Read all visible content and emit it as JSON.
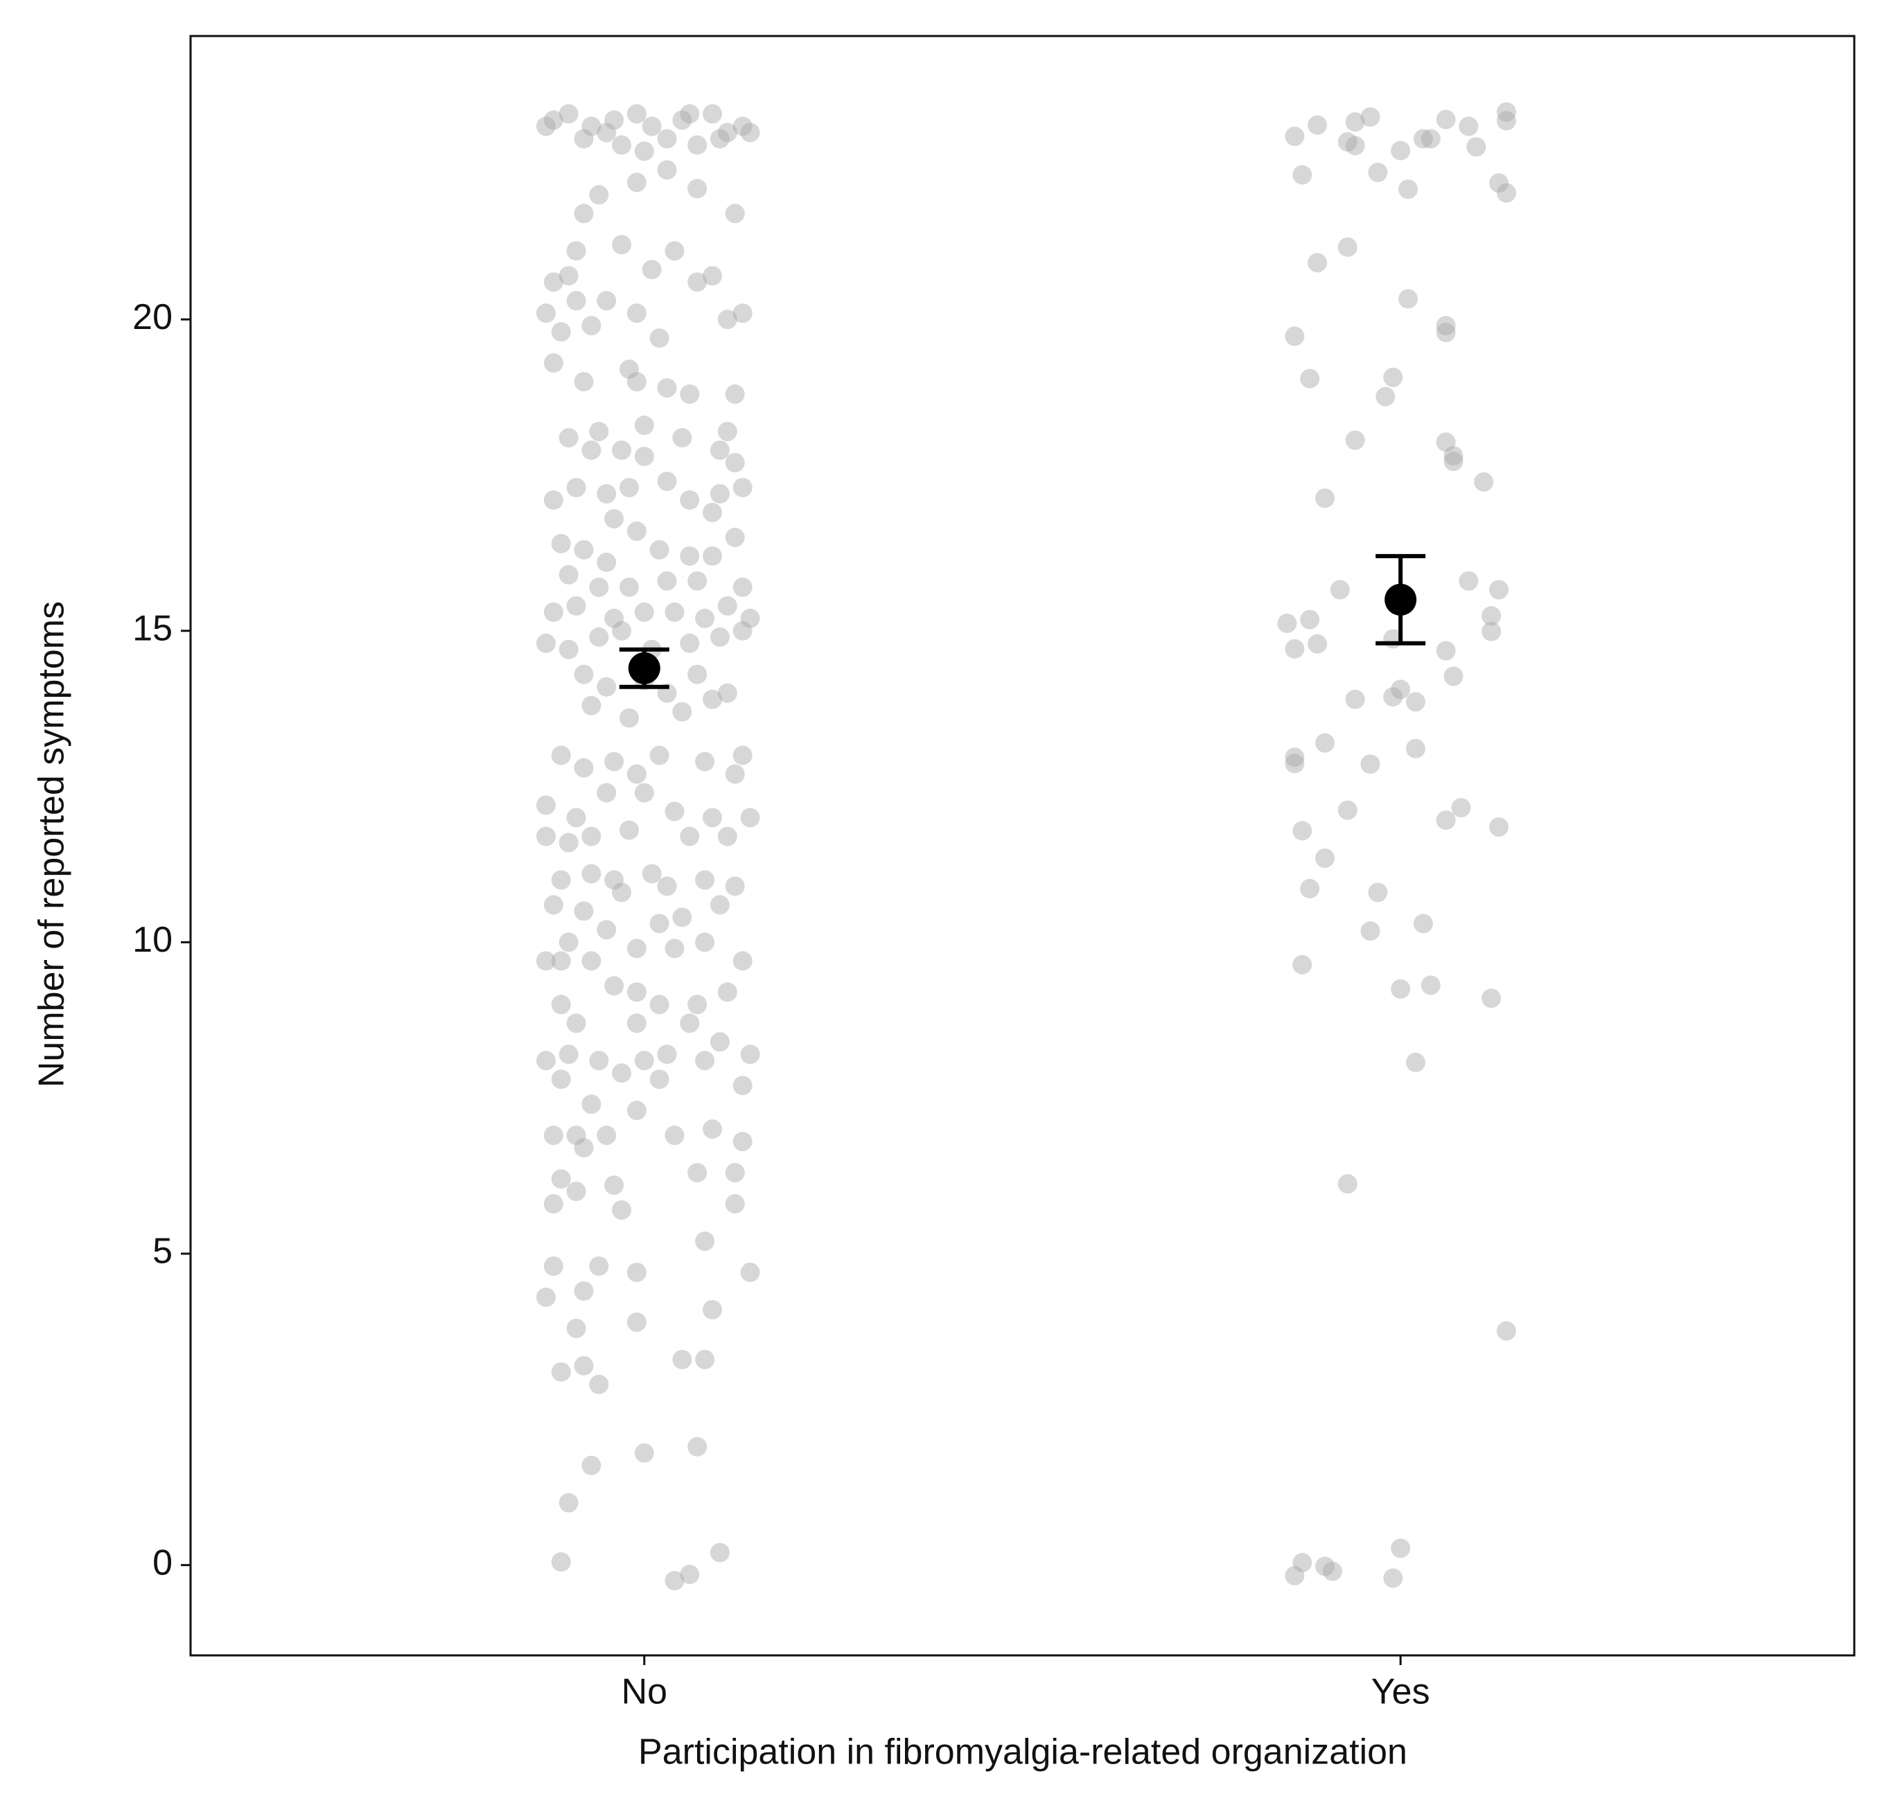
{
  "chart_data": {
    "type": "scatter",
    "x_label": "Participation in fibromyalgia-related organization",
    "y_label": "Number of reported symptoms",
    "xlim": [
      0.4,
      2.6
    ],
    "xticks": [
      {
        "value": 1,
        "label": "No"
      },
      {
        "value": 2,
        "label": "Yes"
      }
    ],
    "ylim": [
      -1.45,
      24.55
    ],
    "yticks": [
      0,
      5,
      10,
      15,
      20
    ],
    "series": [
      {
        "color": "#a6a6a6",
        "x": [
          0.88,
          0.9,
          0.93,
          0.95,
          0.97,
          0.99,
          1.01,
          1.03,
          1.05,
          1.07,
          1.09,
          1.11,
          1.13,
          0.92,
          1.0,
          1.06,
          0.96,
          1.1,
          0.87,
          1.14,
          0.99,
          0.94,
          1.07,
          0.92,
          1.12,
          1.03,
          0.97,
          1.04,
          0.91,
          0.88,
          0.9,
          0.87,
          0.91,
          0.95,
          0.99,
          1.07,
          1.09,
          1.11,
          1.13,
          1.01,
          0.89,
          0.93,
          1.02,
          0.88,
          0.92,
          0.98,
          1.03,
          1.06,
          1.12,
          0.99,
          0.9,
          0.94,
          0.93,
          0.97,
          1.0,
          1.05,
          1.11,
          1.1,
          1.12,
          1.0,
          0.88,
          0.91,
          0.95,
          0.98,
          1.03,
          1.06,
          1.1,
          1.13,
          0.96,
          1.09,
          0.89,
          0.92,
          0.95,
          0.99,
          1.02,
          1.06,
          1.09,
          1.12,
          0.9,
          0.94,
          0.98,
          1.03,
          1.07,
          1.13,
          0.88,
          0.91,
          0.96,
          1.0,
          1.04,
          1.08,
          1.11,
          1.14,
          0.87,
          0.9,
          0.94,
          0.97,
          1.01,
          1.06,
          1.1,
          1.13,
          0.92,
          0.95,
          1.0,
          1.03,
          1.07,
          1.11,
          0.93,
          0.98,
          1.05,
          1.09,
          0.89,
          0.92,
          0.96,
          0.99,
          1.02,
          1.08,
          1.12,
          1.13,
          0.87,
          0.91,
          0.95,
          1.0,
          1.04,
          1.09,
          1.14,
          0.87,
          0.9,
          0.93,
          0.98,
          1.06,
          1.11,
          0.89,
          0.93,
          0.96,
          1.01,
          1.03,
          1.08,
          1.12,
          0.88,
          0.92,
          0.97,
          1.02,
          1.05,
          1.1,
          0.9,
          0.95,
          0.99,
          1.04,
          1.08,
          0.87,
          0.89,
          0.93,
          0.96,
          0.99,
          1.02,
          1.07,
          1.11,
          1.13,
          0.89,
          0.91,
          0.99,
          1.06,
          1.1,
          0.87,
          0.9,
          0.94,
          0.97,
          1.0,
          1.03,
          1.08,
          1.14,
          0.89,
          0.93,
          1.02,
          1.13,
          0.88,
          0.91,
          0.95,
          0.99,
          1.04,
          1.09,
          1.13,
          0.92,
          0.89,
          0.96,
          1.07,
          1.12,
          0.88,
          0.91,
          0.97,
          1.08,
          1.12,
          0.88,
          0.94,
          0.99,
          1.14,
          0.87,
          0.92,
          0.91,
          0.99,
          1.09,
          0.89,
          0.92,
          0.94,
          1.05,
          1.08,
          0.93,
          1.0,
          1.07,
          0.9,
          0.89,
          1.04,
          1.06,
          1.1
        ],
        "values": [
          23.2,
          23.3,
          23.1,
          23.0,
          22.8,
          23.3,
          23.1,
          22.9,
          23.2,
          22.8,
          23.3,
          23.0,
          23.1,
          22.9,
          22.7,
          23.3,
          23.2,
          22.9,
          23.1,
          23.0,
          22.2,
          22.0,
          22.1,
          21.7,
          21.7,
          22.4,
          21.2,
          21.1,
          21.1,
          20.6,
          20.7,
          20.1,
          20.3,
          20.3,
          20.1,
          20.6,
          20.7,
          20.0,
          20.1,
          20.8,
          19.8,
          19.9,
          19.7,
          19.3,
          19.0,
          19.2,
          18.9,
          18.8,
          18.8,
          19.0,
          18.1,
          18.2,
          17.9,
          17.9,
          18.3,
          18.1,
          18.2,
          17.9,
          17.7,
          17.8,
          17.1,
          17.3,
          17.2,
          17.3,
          17.4,
          17.1,
          17.2,
          17.3,
          16.8,
          16.9,
          16.4,
          16.3,
          16.1,
          16.6,
          16.3,
          16.2,
          16.2,
          16.5,
          15.9,
          15.7,
          15.7,
          15.8,
          15.8,
          15.7,
          15.3,
          15.4,
          15.2,
          15.3,
          15.3,
          15.2,
          15.4,
          15.2,
          14.8,
          14.7,
          14.9,
          15.0,
          14.7,
          14.8,
          14.9,
          15.0,
          14.3,
          14.1,
          14.2,
          14.0,
          14.3,
          14.0,
          13.8,
          13.6,
          13.7,
          13.9,
          13.0,
          12.8,
          12.9,
          12.7,
          13.0,
          12.9,
          12.7,
          13.0,
          12.2,
          12.0,
          12.4,
          12.4,
          12.1,
          12.0,
          12.0,
          11.7,
          11.6,
          11.7,
          11.8,
          11.7,
          11.7,
          11.0,
          11.1,
          11.0,
          11.1,
          10.9,
          11.0,
          10.9,
          10.6,
          10.5,
          10.8,
          10.3,
          10.4,
          10.6,
          10.0,
          10.2,
          9.9,
          9.9,
          10.0,
          9.7,
          9.7,
          9.7,
          9.3,
          9.2,
          9.0,
          9.0,
          9.2,
          9.7,
          9.0,
          8.7,
          8.7,
          8.7,
          8.4,
          8.1,
          8.2,
          8.1,
          7.9,
          8.1,
          8.2,
          8.1,
          8.2,
          7.8,
          7.4,
          7.8,
          7.7,
          6.9,
          6.9,
          6.9,
          7.3,
          6.9,
          7.0,
          6.8,
          6.7,
          6.2,
          6.1,
          6.3,
          6.3,
          5.8,
          6.0,
          5.7,
          5.2,
          5.8,
          4.8,
          4.8,
          4.7,
          4.7,
          4.3,
          4.4,
          3.8,
          3.9,
          4.1,
          3.1,
          3.2,
          2.9,
          3.3,
          3.3,
          1.6,
          1.8,
          1.9,
          1.0,
          0.05,
          -0.25,
          -0.15,
          0.2
        ]
      },
      {
        "color": "#a6a6a6",
        "x": [
          1.86,
          1.89,
          1.94,
          1.96,
          1.93,
          1.94,
          1.87,
          1.97,
          2.0,
          2.01,
          2.03,
          2.04,
          2.06,
          2.09,
          2.1,
          2.14,
          2.14,
          2.13,
          2.14,
          1.93,
          1.89,
          2.01,
          2.06,
          2.06,
          1.86,
          1.88,
          1.99,
          1.98,
          1.94,
          2.06,
          2.07,
          2.07,
          2.11,
          1.9,
          1.92,
          2.09,
          2.13,
          1.85,
          1.88,
          2.12,
          2.12,
          1.86,
          1.89,
          1.99,
          2.06,
          2.07,
          2.0,
          1.99,
          2.02,
          1.94,
          1.9,
          2.02,
          1.86,
          1.86,
          1.96,
          1.93,
          2.08,
          2.06,
          2.13,
          1.87,
          1.9,
          1.88,
          1.97,
          2.03,
          1.96,
          1.87,
          2.04,
          2.0,
          2.12,
          2.02,
          1.93,
          2.14,
          1.87,
          1.86,
          1.9,
          1.91,
          2.0,
          1.99
        ],
        "values": [
          22.94,
          23.12,
          23.17,
          23.25,
          22.85,
          22.79,
          22.32,
          22.36,
          22.71,
          22.09,
          22.9,
          22.9,
          23.21,
          23.1,
          22.77,
          23.33,
          23.19,
          22.19,
          22.03,
          21.16,
          20.91,
          20.33,
          19.9,
          19.79,
          19.73,
          19.05,
          19.07,
          18.76,
          18.06,
          18.03,
          17.72,
          17.81,
          17.39,
          17.13,
          15.66,
          15.8,
          15.66,
          15.12,
          15.18,
          15.24,
          14.99,
          14.71,
          14.79,
          14.87,
          14.68,
          14.27,
          14.06,
          13.94,
          13.86,
          13.9,
          13.2,
          13.11,
          12.97,
          12.87,
          12.86,
          12.12,
          12.16,
          11.96,
          11.85,
          11.79,
          11.35,
          10.86,
          10.8,
          10.3,
          10.18,
          9.64,
          9.31,
          9.25,
          9.1,
          8.07,
          6.12,
          3.76,
          0.04,
          -0.17,
          -0.02,
          -0.1,
          0.27,
          -0.21
        ]
      }
    ],
    "summary": {
      "color": "#000000",
      "x": [
        1,
        2
      ],
      "values": [
        14.4,
        15.5
      ],
      "errors": [
        0.3,
        0.7
      ]
    }
  }
}
